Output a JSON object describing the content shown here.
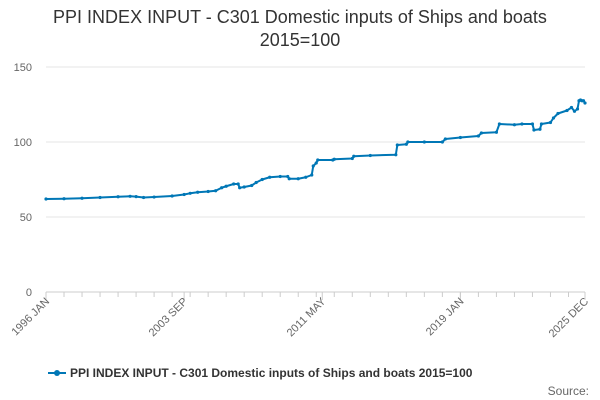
{
  "chart_data": {
    "type": "line",
    "title": "PPI INDEX INPUT - C301 Domestic inputs of Ships and boats",
    "subtitle": "2015=100",
    "xlabel": "",
    "ylabel": "",
    "x_range": [
      "1996-01",
      "2025-12"
    ],
    "x_ticks": [
      "1996 JAN",
      "2003 SEP",
      "2011 MAY",
      "2019 JAN",
      "2025 DEC"
    ],
    "ylim": [
      0,
      150
    ],
    "y_ticks": [
      0,
      50,
      100,
      150
    ],
    "grid": true,
    "legend_position": "bottom",
    "series": [
      {
        "name": "PPI INDEX INPUT - C301 Domestic inputs of Ships and boats 2015=100",
        "color": "#0077b6",
        "points": [
          [
            "1996-01",
            62.0
          ],
          [
            "1997-01",
            62.2
          ],
          [
            "1998-01",
            62.5
          ],
          [
            "1999-01",
            63.0
          ],
          [
            "2000-01",
            63.5
          ],
          [
            "2000-09",
            63.8
          ],
          [
            "2001-01",
            63.6
          ],
          [
            "2001-06",
            63.0
          ],
          [
            "2002-01",
            63.3
          ],
          [
            "2003-01",
            64.0
          ],
          [
            "2003-09",
            65.0
          ],
          [
            "2004-01",
            65.8
          ],
          [
            "2004-06",
            66.5
          ],
          [
            "2005-01",
            67.0
          ],
          [
            "2005-06",
            67.5
          ],
          [
            "2005-10",
            69.5
          ],
          [
            "2006-01",
            70.5
          ],
          [
            "2006-06",
            72.0
          ],
          [
            "2006-09",
            72.0
          ],
          [
            "2006-10",
            69.5
          ],
          [
            "2007-01",
            70.0
          ],
          [
            "2007-06",
            71.0
          ],
          [
            "2007-09",
            73.0
          ],
          [
            "2008-01",
            75.0
          ],
          [
            "2008-06",
            76.5
          ],
          [
            "2009-01",
            77.0
          ],
          [
            "2009-06",
            77.0
          ],
          [
            "2009-07",
            75.5
          ],
          [
            "2010-01",
            75.5
          ],
          [
            "2010-06",
            76.5
          ],
          [
            "2010-10",
            78.0
          ],
          [
            "2010-11",
            84.0
          ],
          [
            "2011-01",
            86.0
          ],
          [
            "2011-02",
            88.0
          ],
          [
            "2011-12",
            88.0
          ],
          [
            "2012-01",
            88.5
          ],
          [
            "2013-01",
            89.0
          ],
          [
            "2013-02",
            90.5
          ],
          [
            "2014-01",
            91.0
          ],
          [
            "2015-06",
            91.5
          ],
          [
            "2015-07",
            98.0
          ],
          [
            "2016-01",
            98.5
          ],
          [
            "2016-02",
            100.0
          ],
          [
            "2017-01",
            100.0
          ],
          [
            "2018-01",
            100.0
          ],
          [
            "2018-03",
            102.0
          ],
          [
            "2019-01",
            103.0
          ],
          [
            "2020-01",
            104.0
          ],
          [
            "2020-03",
            106.0
          ],
          [
            "2021-01",
            106.5
          ],
          [
            "2021-03",
            112.0
          ],
          [
            "2022-01",
            111.5
          ],
          [
            "2022-06",
            112.0
          ],
          [
            "2023-01",
            112.0
          ],
          [
            "2023-02",
            108.0
          ],
          [
            "2023-06",
            108.5
          ],
          [
            "2023-07",
            112.0
          ],
          [
            "2024-01",
            113.0
          ],
          [
            "2024-03",
            116.0
          ],
          [
            "2024-06",
            119.0
          ],
          [
            "2024-12",
            121.0
          ],
          [
            "2025-03",
            123.0
          ],
          [
            "2025-05",
            120.5
          ],
          [
            "2025-07",
            122.0
          ],
          [
            "2025-08",
            127.5
          ],
          [
            "2025-09",
            128.0
          ],
          [
            "2025-10",
            127.5
          ],
          [
            "2025-11",
            127.5
          ],
          [
            "2025-12",
            126.0
          ]
        ]
      }
    ],
    "source_label": "Source:"
  }
}
